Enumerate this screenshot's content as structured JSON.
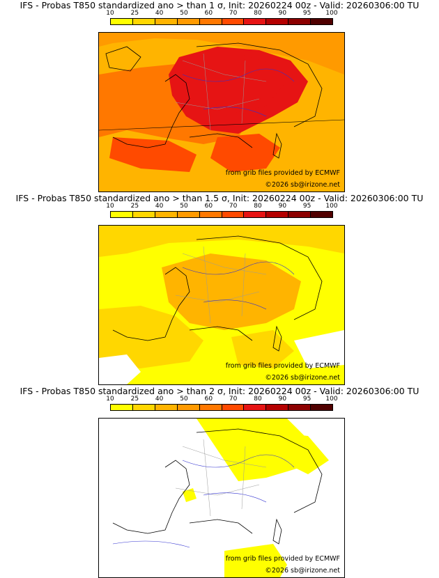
{
  "colors": {
    "scale": [
      "#ffff00",
      "#ffd700",
      "#ffb400",
      "#ff9a00",
      "#ff7800",
      "#ff4a00",
      "#e61414",
      "#b40000",
      "#8c0000",
      "#500000"
    ],
    "white": "#ffffff",
    "border_national": "#000000",
    "border_regional": "#9a9a9a",
    "river": "#3030d0"
  },
  "colorbar": {
    "labels": [
      "10",
      "25",
      "40",
      "50",
      "60",
      "70",
      "80",
      "90",
      "95",
      "100"
    ]
  },
  "panels": [
    {
      "title": "IFS - Probas T850  standardized ano > than 1 σ, Init: 20260224 00z - Valid: 20260306:00 TU",
      "credit_source": "from grib files provided by ECMWF",
      "credit_site": "©2026 sb@irizone.net",
      "dominant_probability": "high (60-90%) over France, 40-60% elsewhere"
    },
    {
      "title": "IFS - Probas T850  standardized ano > than 1.5 σ, Init: 20260224 00z - Valid: 20260306:00 TU",
      "credit_source": "from grib files provided by ECMWF",
      "credit_site": "©2026 sb@irizone.net",
      "dominant_probability": "mostly 10-40%, locally 40-60% over France"
    },
    {
      "title": "IFS - Probas T850  standardized ano > than 2 σ, Init: 20260224 00z - Valid: 20260306:00 TU",
      "credit_source": "from grib files provided by ECMWF",
      "credit_site": "©2026 sb@irizone.net",
      "dominant_probability": "mostly below 10%, patches of 10-25% over Benelux, Germany and near Corsica"
    }
  ]
}
